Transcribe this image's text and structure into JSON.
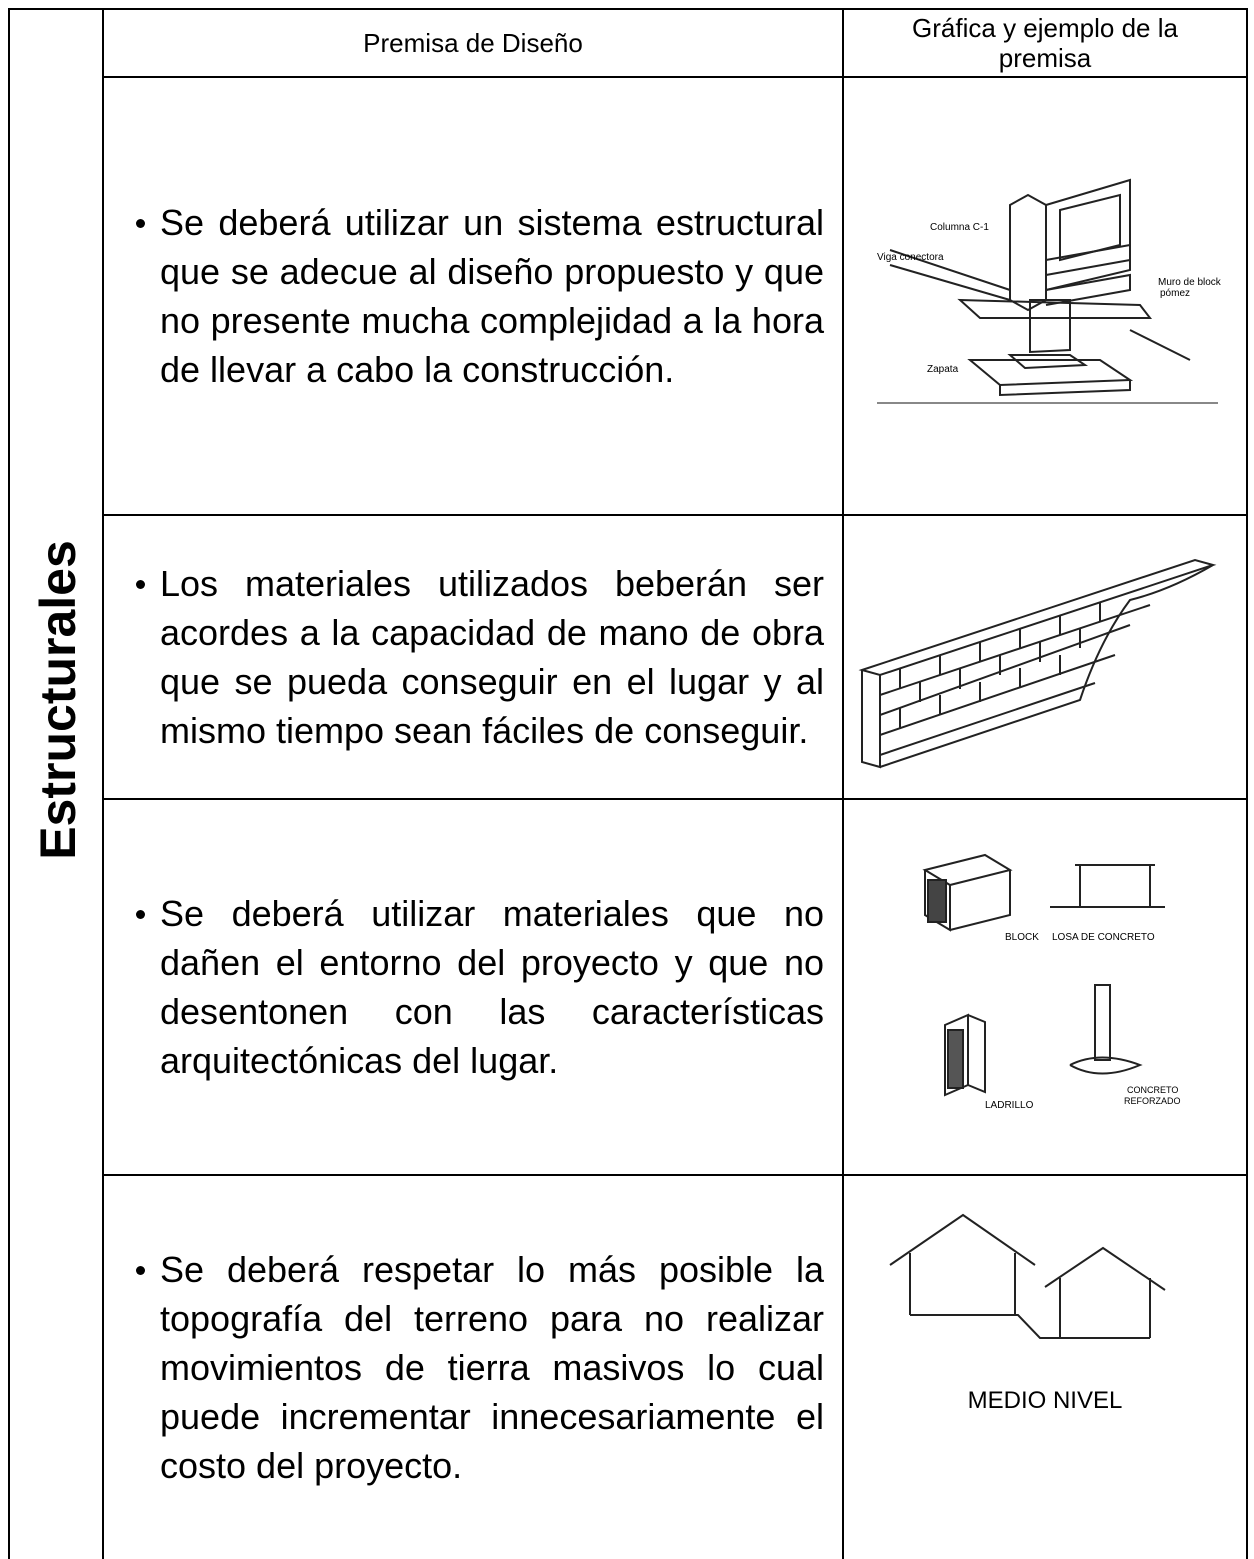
{
  "side_label": "Estructurales",
  "header": {
    "premise": "Premisa de Diseño",
    "graphic": "Gráfica y ejemplo de la premisa"
  },
  "rows": [
    {
      "text": "Se deberá utilizar un sistema estructural que se adecue al diseño propuesto y que no presente mucha complejidad a la hora de llevar a cabo la construcción.",
      "labels": {
        "column": "Columna C-1",
        "beam": "Viga conectora",
        "wall": [
          "Muro de block",
          "pómez"
        ],
        "footing": "Zapata"
      }
    },
    {
      "text": "Los materiales utilizados beberán ser acordes a la capacidad de mano de obra que se pueda conseguir en el lugar y al mismo tiempo sean fáciles de conseguir."
    },
    {
      "text": "Se deberá utilizar materiales que no dañen el entorno del proyecto y que no desentonen con las características arquitectónicas del lugar.",
      "labels": {
        "block": "BLOCK",
        "slab": "LOSA DE CONCRETO",
        "brick": "LADRILLO",
        "concrete": [
          "CONCRETO",
          "REFORZADO"
        ]
      }
    },
    {
      "text": "Se deberá respetar lo más posible la topografía del terreno para no realizar movimientos de tierra masivos lo cual puede incrementar innecesariamente el costo del proyecto.",
      "labels": {
        "split": "MEDIO NIVEL"
      }
    }
  ]
}
